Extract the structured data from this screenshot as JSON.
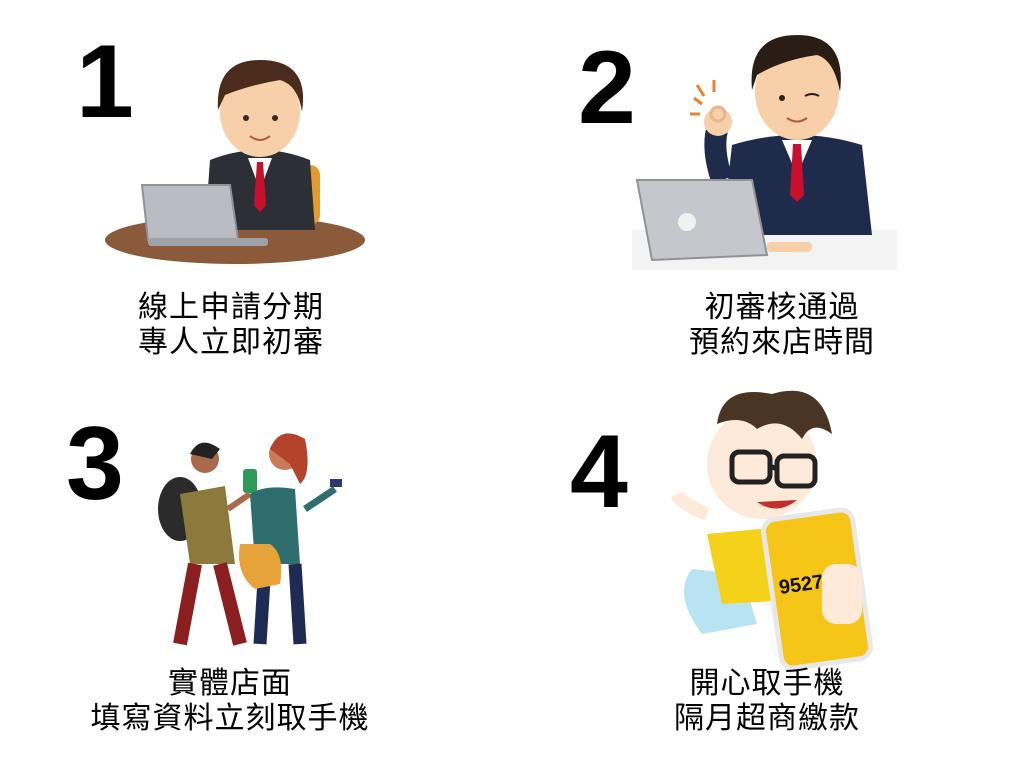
{
  "steps": [
    {
      "number": "1",
      "line1": "線上申請分期",
      "line2": "專人立即初審"
    },
    {
      "number": "2",
      "line1": "初審核通過",
      "line2": "預約來店時間"
    },
    {
      "number": "3",
      "line1": "實體店面",
      "line2": "填寫資料立刻取手機"
    },
    {
      "number": "4",
      "line1": "開心取手機",
      "line2": "隔月超商繳款",
      "phone_text": "9527"
    }
  ],
  "colors": {
    "suit": "#2c2f36",
    "tie": "#c8102e",
    "desk": "#8a5a3a",
    "laptop": "#b9bcc2",
    "phone_yellow": "#f5c518",
    "chair": "#e39a2e"
  },
  "icons": [
    "businessman-laptop-illustration",
    "businessman-ok-illustration",
    "walking-people-illustration",
    "happy-phone-character-illustration"
  ]
}
